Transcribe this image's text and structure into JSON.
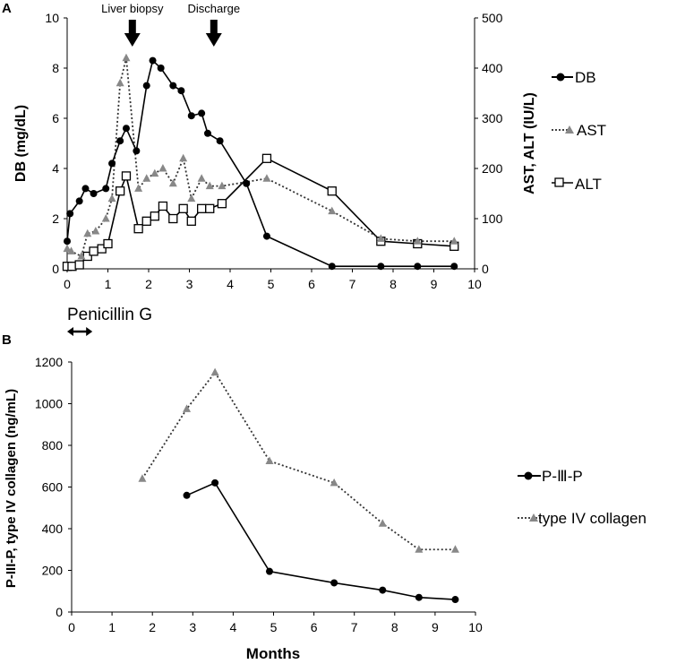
{
  "chart_data": [
    {
      "panel": "A",
      "type": "line",
      "x_range": [
        0,
        10
      ],
      "x_ticks": [
        "0",
        "1",
        "2",
        "3",
        "4",
        "5",
        "6",
        "7",
        "8",
        "9",
        "10"
      ],
      "ylabel_left": "DB (mg/dL)",
      "ylim_left": [
        0,
        10
      ],
      "y_ticks_left": [
        "0",
        "2",
        "4",
        "6",
        "8",
        "10"
      ],
      "ylabel_right": "AST, ALT (IU/L)",
      "ylim_right": [
        0,
        500
      ],
      "y_ticks_right": [
        "0",
        "100",
        "200",
        "300",
        "400",
        "500"
      ],
      "annotations": [
        "Liver biopsy",
        "Discharge"
      ],
      "annotation_x": [
        1.6,
        3.6
      ],
      "treatment_label": "Penicillin G",
      "treatment_range": [
        0,
        0.4
      ],
      "series": [
        {
          "name": "DB",
          "axis": "left",
          "style": "solid",
          "marker": "circle",
          "x": [
            0,
            0.07,
            0.3,
            0.45,
            0.65,
            0.95,
            1.1,
            1.3,
            1.45,
            1.7,
            1.95,
            2.1,
            2.3,
            2.6,
            2.8,
            3.05,
            3.3,
            3.45,
            3.75,
            4.4,
            4.9,
            6.5,
            7.7,
            8.6,
            9.5
          ],
          "y": [
            1.1,
            2.2,
            2.7,
            3.2,
            3.0,
            3.2,
            4.2,
            5.1,
            5.6,
            4.7,
            7.3,
            8.3,
            8.0,
            7.3,
            7.1,
            6.1,
            6.2,
            5.4,
            5.1,
            3.4,
            1.3,
            0.1,
            0.1,
            0.1,
            0.1
          ]
        },
        {
          "name": "AST",
          "axis": "right",
          "style": "dotted",
          "marker": "triangle",
          "x": [
            0,
            0.1,
            0.35,
            0.5,
            0.7,
            0.95,
            1.1,
            1.3,
            1.45,
            1.75,
            1.95,
            2.15,
            2.35,
            2.6,
            2.85,
            3.05,
            3.3,
            3.5,
            3.8,
            4.9,
            6.5,
            7.7,
            8.6,
            9.5
          ],
          "y": [
            40,
            35,
            25,
            70,
            75,
            100,
            140,
            370,
            420,
            160,
            180,
            190,
            200,
            170,
            220,
            140,
            180,
            165,
            165,
            180,
            115,
            60,
            55,
            55
          ]
        },
        {
          "name": "ALT",
          "axis": "right",
          "style": "solid",
          "marker": "square",
          "x": [
            0,
            0.12,
            0.3,
            0.5,
            0.65,
            0.85,
            1.0,
            1.3,
            1.45,
            1.75,
            1.95,
            2.15,
            2.35,
            2.6,
            2.85,
            3.05,
            3.3,
            3.5,
            3.8,
            4.9,
            6.5,
            7.7,
            8.6,
            9.5
          ],
          "y": [
            5,
            5,
            8,
            25,
            35,
            40,
            50,
            155,
            185,
            80,
            95,
            105,
            125,
            100,
            120,
            95,
            120,
            120,
            130,
            220,
            155,
            55,
            50,
            45
          ]
        }
      ]
    },
    {
      "panel": "B",
      "type": "line",
      "xlabel": "Months",
      "x_range": [
        0,
        10
      ],
      "x_ticks": [
        "0",
        "1",
        "2",
        "3",
        "4",
        "5",
        "6",
        "7",
        "8",
        "9",
        "10"
      ],
      "ylabel": "P-III-P, type IV collagen (ng/mL)",
      "ylim": [
        0,
        1200
      ],
      "y_ticks": [
        "0",
        "200",
        "400",
        "600",
        "800",
        "1000",
        "1200"
      ],
      "series": [
        {
          "name": "P-Ⅲ-P",
          "style": "solid",
          "marker": "circle",
          "x": [
            2.85,
            3.55,
            4.9,
            6.5,
            7.7,
            8.6,
            9.5
          ],
          "y": [
            560,
            620,
            195,
            140,
            105,
            70,
            60
          ]
        },
        {
          "name": "type IV collagen",
          "style": "dotted",
          "marker": "triangle",
          "x": [
            1.75,
            2.85,
            3.55,
            4.9,
            6.5,
            7.7,
            8.6,
            9.5
          ],
          "y": [
            640,
            975,
            1150,
            725,
            620,
            425,
            300,
            300
          ]
        }
      ]
    }
  ]
}
